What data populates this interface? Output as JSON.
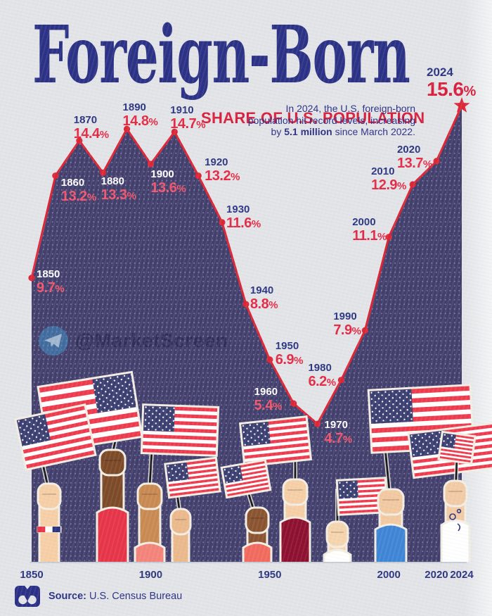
{
  "title": "Foreign-Born",
  "subtitle": "SHARE OF U.S. POPULATION",
  "annotation": {
    "line1": "In 2024, the U.S. foreign-born",
    "line2": "population hit record levels, increasing",
    "line3_pre": "by ",
    "line3_bold": "5.1 million",
    "line3_post": " since March 2022."
  },
  "watermark": {
    "handle": "@MarketScreen",
    "icon": "telegram-icon"
  },
  "source": {
    "label": "Source:",
    "text": "U.S. Census Bureau"
  },
  "colors": {
    "background": "#e2e4e7",
    "navy_text": "#2b3185",
    "subtitle_red": "#d81f3d",
    "line_red": "#dc2636",
    "value_red": "#e32a45",
    "value_pink": "#f2556c",
    "area_fill": "#423f6c",
    "area_dot": "#918dbb",
    "flag_red": "#ee3a4d",
    "flag_canton": "#3a3e70",
    "axis_gray": "#c8cdd5",
    "white": "#ffffff"
  },
  "chart_data": {
    "type": "area",
    "title": "Foreign-Born Share of U.S. Population",
    "unit": "%",
    "categories": [
      1850,
      1860,
      1870,
      1880,
      1890,
      1900,
      1910,
      1920,
      1930,
      1940,
      1950,
      1960,
      1970,
      1980,
      1990,
      2000,
      2010,
      2020,
      2024
    ],
    "values": [
      9.7,
      13.2,
      14.4,
      13.3,
      14.8,
      13.6,
      14.7,
      13.2,
      11.6,
      8.8,
      6.9,
      5.4,
      4.7,
      6.2,
      7.9,
      11.1,
      12.9,
      13.7,
      15.6
    ],
    "x_axis_ticks": [
      "1850",
      "1900",
      "1950",
      "2000",
      "2020",
      "2024"
    ],
    "ylim": [
      0,
      16
    ],
    "grid": false,
    "legend": "none",
    "last_point_marker": "star"
  }
}
